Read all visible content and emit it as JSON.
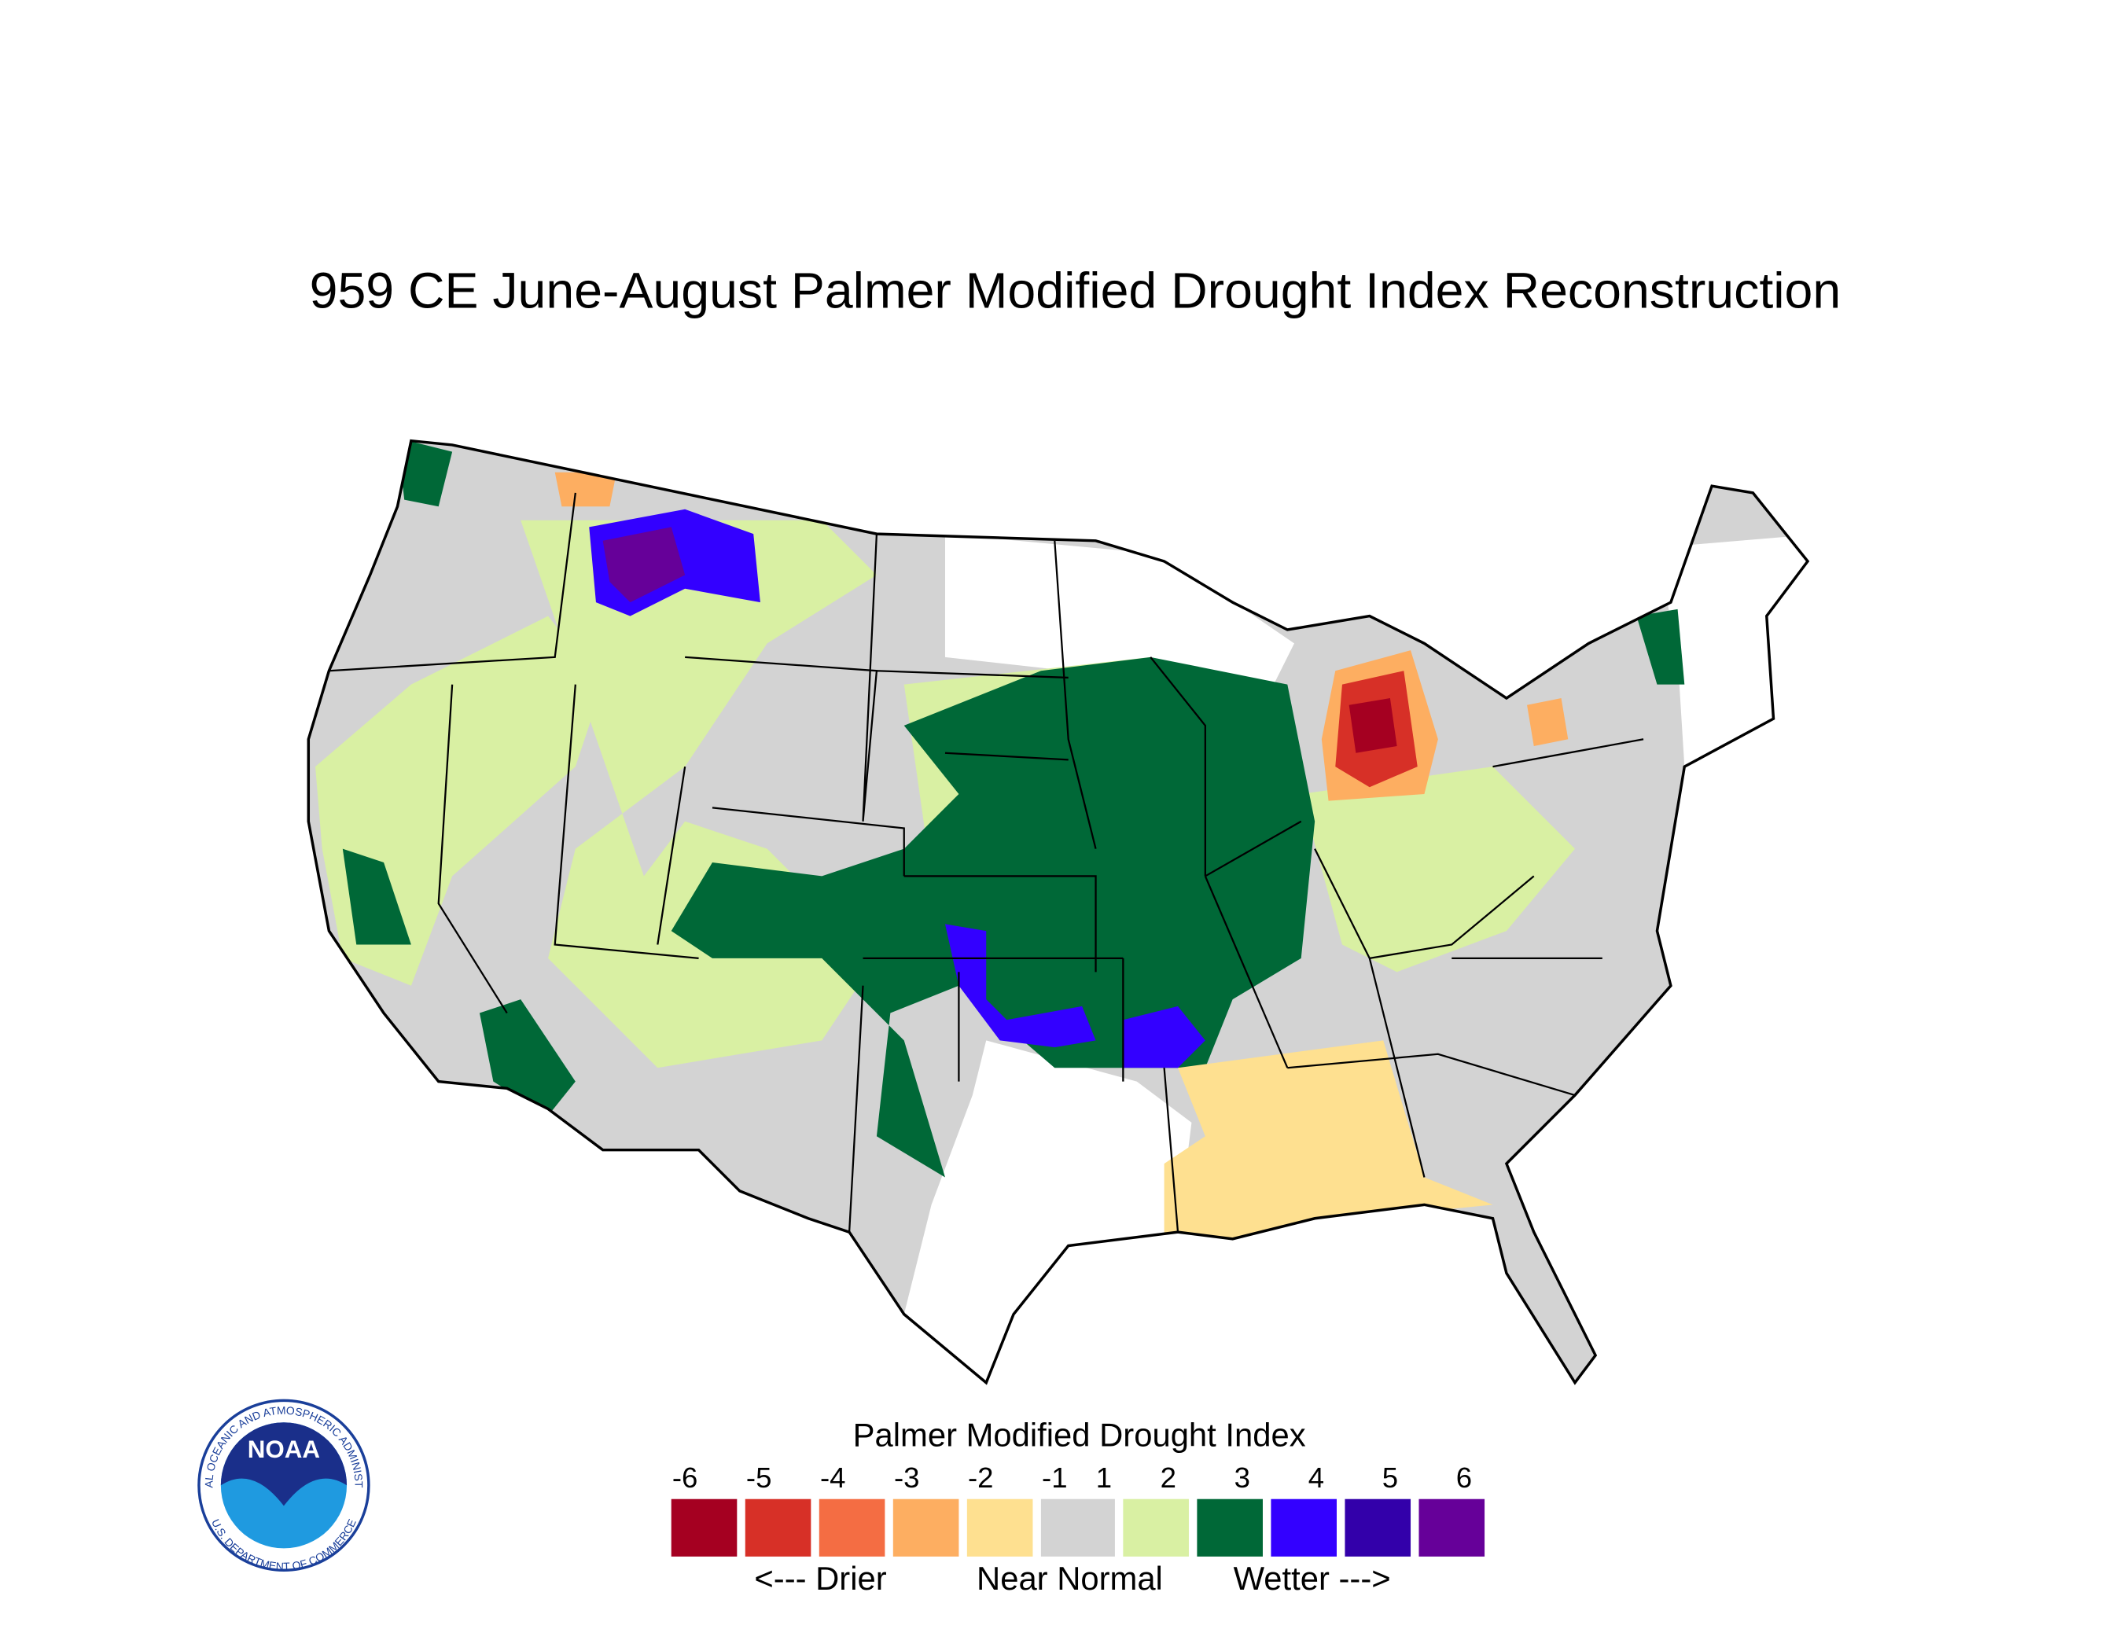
{
  "header": {
    "title": "959 CE  June-August  Palmer Modified Drought Index Reconstruction"
  },
  "logo": {
    "text": "NOAA",
    "ring_top": "NATIONAL OCEANIC AND ATMOSPHERIC ADMINISTRATION",
    "ring_bottom": "U.S. DEPARTMENT OF COMMERCE"
  },
  "legend": {
    "title": "Palmer Modified Drought Index",
    "labels": [
      "-6",
      "-5",
      "-4",
      "-3",
      "-2",
      "-1",
      "1",
      "2",
      "3",
      "4",
      "5",
      "6"
    ],
    "colors": [
      "#a50021",
      "#d73027",
      "#f46d43",
      "#fdae61",
      "#fee090",
      "#d3d3d3",
      "#d9f0a3",
      "#006837",
      "#3300ff",
      "#3300aa",
      "#660099"
    ],
    "captions": [
      "<--- Drier",
      "Near Normal",
      "Wetter --->"
    ]
  }
}
